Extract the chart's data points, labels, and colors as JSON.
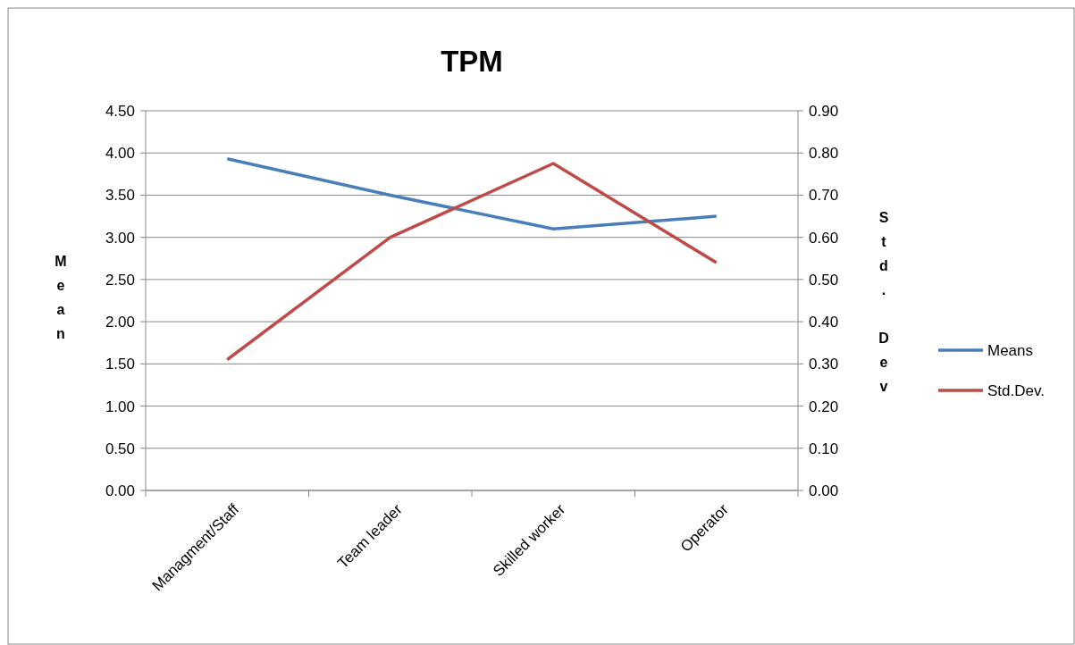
{
  "chart_data": {
    "type": "line",
    "title": "TPM",
    "ylabel": "Mean",
    "y2label": "Std. Dev",
    "categories": [
      "Managment/Staff",
      "Team leader",
      "Skilled worker",
      "Operator"
    ],
    "series": [
      {
        "name": "Means",
        "color": "#4a7ebb",
        "values": [
          3.93,
          3.5,
          3.1,
          3.25
        ]
      },
      {
        "name": "Std.Dev.",
        "color": "#be4b48",
        "values": [
          0.31,
          0.6,
          0.775,
          0.54
        ],
        "axis": "y2"
      }
    ],
    "ylim": [
      0,
      4.5
    ],
    "yticks": [
      {
        "value": 0,
        "label": "0.00"
      },
      {
        "value": 0.5,
        "label": "0.50"
      },
      {
        "value": 1,
        "label": "1.00"
      },
      {
        "value": 1.5,
        "label": "1.50"
      },
      {
        "value": 2,
        "label": "2.00"
      },
      {
        "value": 2.5,
        "label": "2.50"
      },
      {
        "value": 3,
        "label": "3.00"
      },
      {
        "value": 3.5,
        "label": "3.50"
      },
      {
        "value": 4,
        "label": "4.00"
      },
      {
        "value": 4.5,
        "label": "4.50"
      }
    ],
    "y2lim": [
      0,
      0.9
    ],
    "y2ticks": [
      {
        "value": 0,
        "label": "0.00"
      },
      {
        "value": 0.1,
        "label": "0.10"
      },
      {
        "value": 0.2,
        "label": "0.20"
      },
      {
        "value": 0.3,
        "label": "0.30"
      },
      {
        "value": 0.4,
        "label": "0.40"
      },
      {
        "value": 0.5,
        "label": "0.50"
      },
      {
        "value": 0.6,
        "label": "0.60"
      },
      {
        "value": 0.7,
        "label": "0.70"
      },
      {
        "value": 0.8,
        "label": "0.80"
      },
      {
        "value": 0.9,
        "label": "0.90"
      }
    ],
    "grid": "y",
    "legend": "right",
    "marker": "none",
    "line_style": "solid"
  }
}
